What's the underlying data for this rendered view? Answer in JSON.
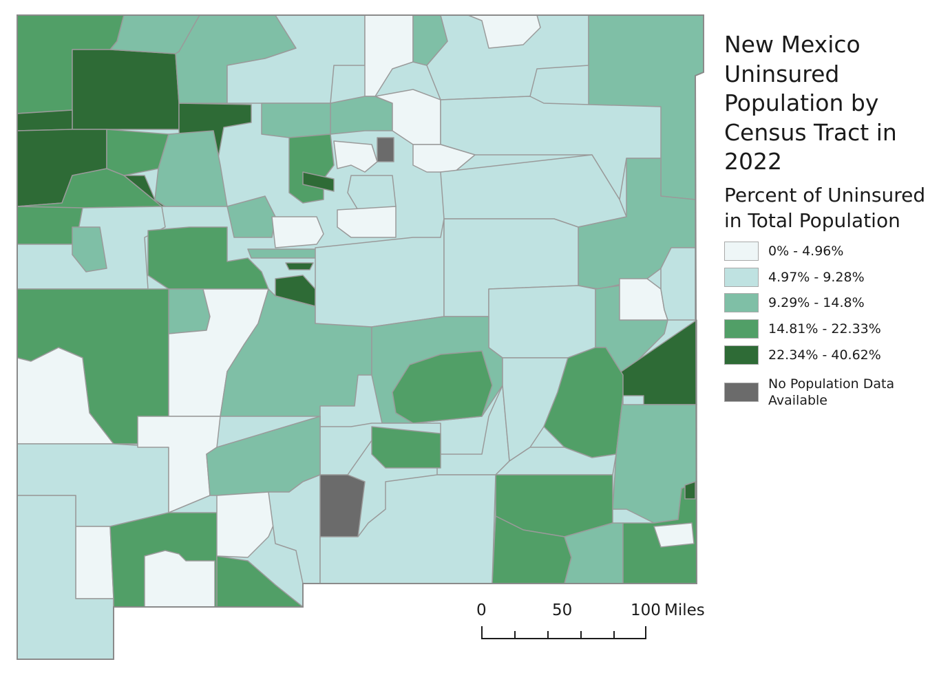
{
  "title": "New Mexico Uninsured Population by Census Tract in 2022",
  "subtitle": "Percent of Uninsured in Total Population",
  "legend": {
    "classes": [
      {
        "label": "0% - 4.96%",
        "color": "#eef6f7"
      },
      {
        "label": "4.97% - 9.28%",
        "color": "#bfe2e1"
      },
      {
        "label": "9.29% - 14.8%",
        "color": "#7fbfa6"
      },
      {
        "label": "14.81% - 22.33%",
        "color": "#519f67"
      },
      {
        "label": "22.34% - 40.62%",
        "color": "#2e6b36"
      },
      {
        "label": "No Population Data Available",
        "color": "#6b6b6b"
      }
    ]
  },
  "scale": {
    "ticks": [
      "0",
      "50",
      "100"
    ],
    "unit": "Miles"
  },
  "colors": {
    "tract_border": "#9a9a9a"
  }
}
